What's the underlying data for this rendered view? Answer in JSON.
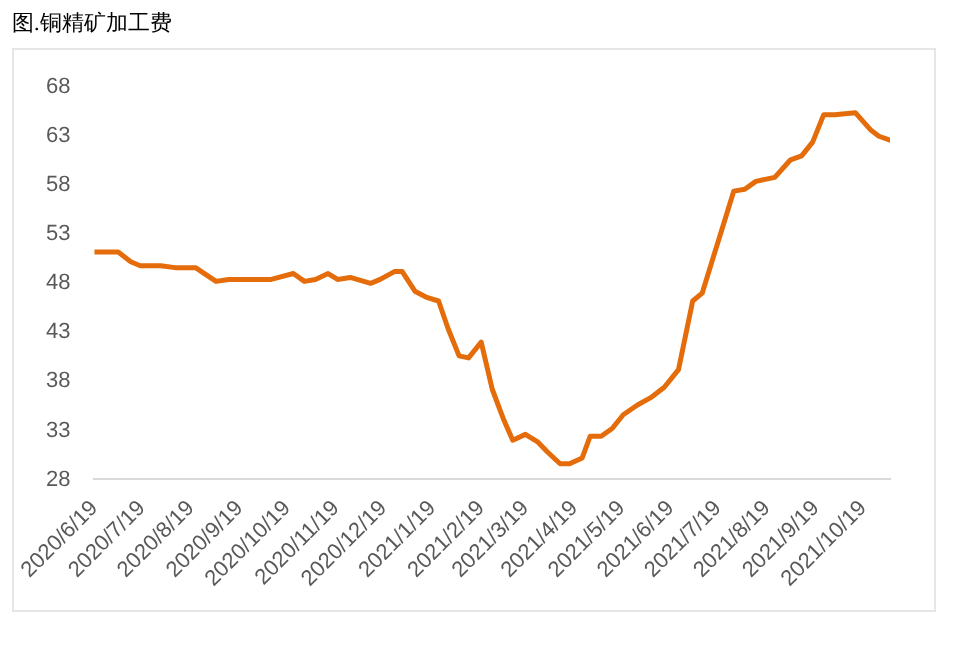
{
  "chart_data": {
    "type": "line",
    "title": "图.铜精矿加工费",
    "x": [
      "2020-06-19",
      "2020-07-04",
      "2020-07-12",
      "2020-07-18",
      "2020-07-31",
      "2020-08-09",
      "2020-08-22",
      "2020-09-04",
      "2020-09-12",
      "2020-10-09",
      "2020-10-23",
      "2020-10-30",
      "2020-11-06",
      "2020-11-14",
      "2020-11-20",
      "2020-11-28",
      "2020-12-11",
      "2020-12-17",
      "2020-12-26",
      "2020-12-31",
      "2021-01-08",
      "2021-01-15",
      "2021-01-23",
      "2021-01-29",
      "2021-02-05",
      "2021-02-11",
      "2021-02-19",
      "2021-02-26",
      "2021-03-05",
      "2021-03-11",
      "2021-03-19",
      "2021-03-27",
      "2021-04-02",
      "2021-04-10",
      "2021-04-16",
      "2021-04-24",
      "2021-04-29",
      "2021-05-06",
      "2021-05-13",
      "2021-05-20",
      "2021-05-29",
      "2021-06-07",
      "2021-06-15",
      "2021-06-24",
      "2021-07-03",
      "2021-07-09",
      "2021-07-19",
      "2021-07-29",
      "2021-08-05",
      "2021-08-12",
      "2021-08-24",
      "2021-09-03",
      "2021-09-10",
      "2021-09-17",
      "2021-09-24",
      "2021-10-01",
      "2021-10-14",
      "2021-10-24",
      "2021-10-29",
      "2021-11-05"
    ],
    "series": [
      {
        "color": "#e46c0a",
        "values": [
          51.2,
          51.2,
          50.2,
          49.8,
          49.8,
          49.6,
          49.6,
          48.2,
          48.4,
          48.4,
          49,
          48.2,
          48.4,
          49,
          48.4,
          48.6,
          48,
          48.4,
          49.2,
          49.2,
          47.2,
          46.6,
          46.2,
          43.4,
          40.6,
          40.4,
          42,
          37.2,
          34.2,
          32,
          32.6,
          31.8,
          30.8,
          29.6,
          29.6,
          30.2,
          32.4,
          32.4,
          33.2,
          34.6,
          35.6,
          36.4,
          37.4,
          39.2,
          46.2,
          47,
          52.2,
          57.4,
          57.6,
          58.4,
          58.8,
          60.6,
          61,
          62.4,
          65.2,
          65.2,
          65.4,
          63.6,
          63,
          62.6
        ]
      }
    ],
    "xlim": [
      "2020-06-19",
      "2021-11-05"
    ],
    "xticks": [
      {
        "value": "2020-06-19",
        "label": "2020/6/19"
      },
      {
        "value": "2020-07-19",
        "label": "2020/7/19"
      },
      {
        "value": "2020-08-19",
        "label": "2020/8/19"
      },
      {
        "value": "2020-09-19",
        "label": "2020/9/19"
      },
      {
        "value": "2020-10-19",
        "label": "2020/10/19"
      },
      {
        "value": "2020-11-19",
        "label": "2020/11/19"
      },
      {
        "value": "2020-12-19",
        "label": "2020/12/19"
      },
      {
        "value": "2021-01-19",
        "label": "2021/1/19"
      },
      {
        "value": "2021-02-19",
        "label": "2021/2/19"
      },
      {
        "value": "2021-03-19",
        "label": "2021/3/19"
      },
      {
        "value": "2021-04-19",
        "label": "2021/4/19"
      },
      {
        "value": "2021-05-19",
        "label": "2021/5/19"
      },
      {
        "value": "2021-06-19",
        "label": "2021/6/19"
      },
      {
        "value": "2021-07-19",
        "label": "2021/7/19"
      },
      {
        "value": "2021-08-19",
        "label": "2021/8/19"
      },
      {
        "value": "2021-09-19",
        "label": "2021/9/19"
      },
      {
        "value": "2021-10-19",
        "label": "2021/10/19"
      }
    ],
    "ylim": [
      28,
      68
    ],
    "yticks": [
      28,
      33,
      38,
      43,
      48,
      53,
      58,
      63,
      68
    ],
    "grid": false,
    "legend": false,
    "marker": "none",
    "line_style": "solid"
  }
}
